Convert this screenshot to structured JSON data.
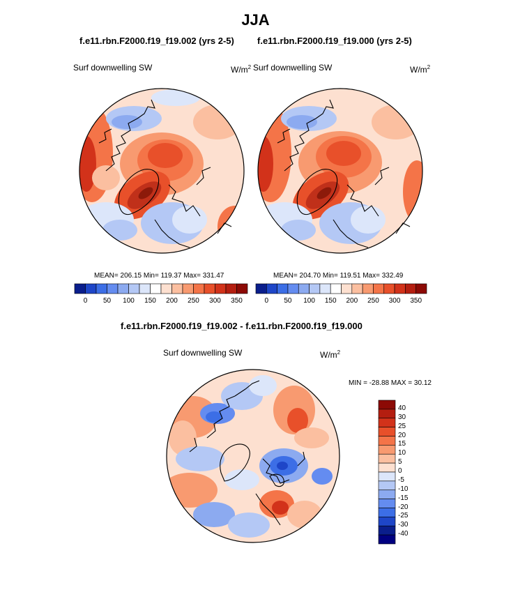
{
  "title": "JJA",
  "panels": [
    {
      "case": "f.e11.rbn.F2000.f19_f19.002 (yrs 2-5)",
      "variable": "Surf downwelling SW",
      "units": "W/m",
      "units_exp": "2",
      "stats": "MEAN= 206.15  Min= 119.37  Max= 331.47"
    },
    {
      "case": "f.e11.rbn.F2000.f19_f19.000 (yrs 2-5)",
      "variable": "Surf downwelling SW",
      "units": "W/m",
      "units_exp": "2",
      "stats": "MEAN= 204.70  Min= 119.51  Max= 332.49"
    }
  ],
  "colorbar_main": {
    "ticks": [
      "0",
      "50",
      "100",
      "150",
      "200",
      "250",
      "300",
      "350"
    ],
    "colors": [
      "#0a1e8c",
      "#1e46c8",
      "#3c6ee6",
      "#648cf0",
      "#8caaf0",
      "#b4c8f5",
      "#dce6fa",
      "#ffffff",
      "#fde0d0",
      "#fbbfa0",
      "#f89a70",
      "#f47448",
      "#e8502a",
      "#d2321a",
      "#b41e10",
      "#8c0a05"
    ]
  },
  "diff": {
    "title": "f.e11.rbn.F2000.f19_f19.002 - f.e11.rbn.F2000.f19_f19.000",
    "variable": "Surf downwelling SW",
    "units": "W/m",
    "units_exp": "2",
    "minmax": "MIN = -28.88 MAX =  30.12",
    "ticks": [
      "40",
      "30",
      "25",
      "20",
      "15",
      "10",
      "5",
      "0",
      "-5",
      "-10",
      "-15",
      "-20",
      "-25",
      "-30",
      "-40"
    ],
    "colors": [
      "#8c0a05",
      "#b41e10",
      "#d2321a",
      "#e8502a",
      "#f47448",
      "#f89a70",
      "#fbbfa0",
      "#fde0d0",
      "#dce6fa",
      "#b4c8f5",
      "#8caaf0",
      "#648cf0",
      "#3c6ee6",
      "#1e46c8",
      "#0a1e8c",
      "#000080"
    ]
  },
  "map_colors": {
    "bg_main": "#fde0d0",
    "warm1": "#fbbfa0",
    "warm2": "#f89a70",
    "warm3": "#e8502a",
    "warm4": "#c0301a",
    "warm5": "#8c1a0a",
    "cool1": "#dce6fa",
    "cool2": "#b4c8f5",
    "cool3": "#8caaf0",
    "cool4": "#3c6ee6",
    "cool5": "#0a1e8c"
  }
}
